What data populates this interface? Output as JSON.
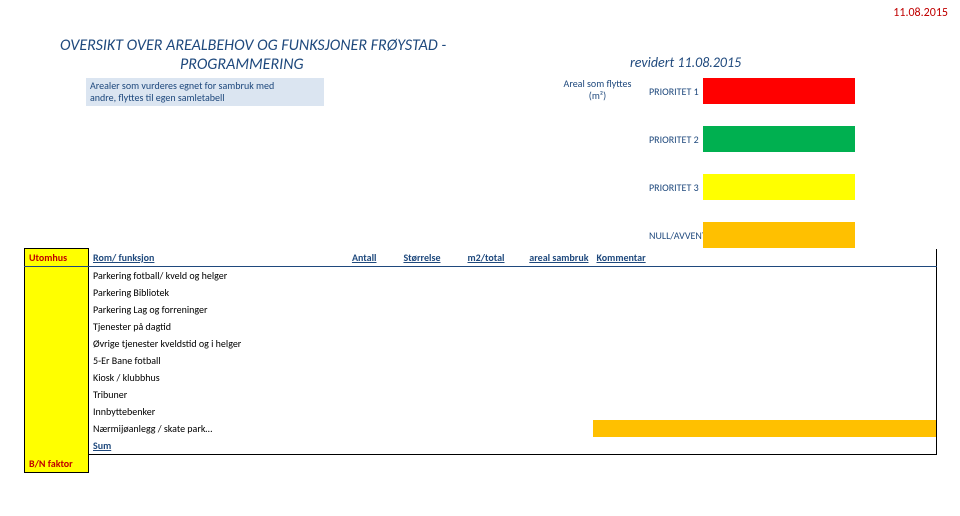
{
  "top_date": "11.08.2015",
  "title": {
    "line1": "OVERSIKT OVER AREALBEHOV  OG  FUNKSJONER  FRØYSTAD -",
    "line2": "PROGRAMMERING"
  },
  "revidert": "revidert 11.08.2015",
  "subnote": {
    "line1": "Arealer som vurderes egnet for sambruk med",
    "line2": "andre, flyttes til egen samletabell"
  },
  "areal_label": {
    "line1": "Areal som flyttes",
    "line2": "(m²)"
  },
  "priorities": {
    "p1": {
      "label": "PRIORITET 1",
      "color": "#ff0000"
    },
    "p2": {
      "label": "PRIORITET 2",
      "color": "#00b050"
    },
    "p3": {
      "label": "PRIORITET 3",
      "color": "#ffff00"
    },
    "p4": {
      "label": "NULL/AVVENTER",
      "color": "#ffc000"
    }
  },
  "table": {
    "category_label": "Utomhus",
    "bn_label": "B/N faktor",
    "headers": {
      "rom": "Rom/ funksjon",
      "antall": "Antall",
      "storrelse": "Størrelse",
      "m2total": "m2/total",
      "arealsambruk": "areal sambruk",
      "kommentar": "Kommentar"
    },
    "rows": [
      {
        "rom": "Parkering fotball/ kveld og helger",
        "komm_bg": "#ffffff"
      },
      {
        "rom": "Parkering Bibliotek",
        "komm_bg": "#ffffff"
      },
      {
        "rom": "Parkering Lag og forreninger",
        "komm_bg": "#ffffff"
      },
      {
        "rom": "Tjenester på dagtid",
        "komm_bg": "#ffffff"
      },
      {
        "rom": "Øvrige tjenester kveldstid og i helger",
        "komm_bg": "#ffffff"
      },
      {
        "rom": "5-Er Bane fotball",
        "komm_bg": "#ffffff"
      },
      {
        "rom": "Kiosk / klubbhus",
        "komm_bg": "#ffffff"
      },
      {
        "rom": "Tribuner",
        "komm_bg": "#ffffff"
      },
      {
        "rom": "Innbyttebenker",
        "komm_bg": "#ffffff"
      },
      {
        "rom": "Nærmijøanlegg / skate park…",
        "komm_bg": "#ffc000"
      }
    ],
    "sum_label": "Sum"
  },
  "colors": {
    "heading_blue": "#1f497d",
    "red_text": "#c00000",
    "yellow_bg": "#ffff00",
    "lightblue_bg": "#dbe5f1"
  }
}
